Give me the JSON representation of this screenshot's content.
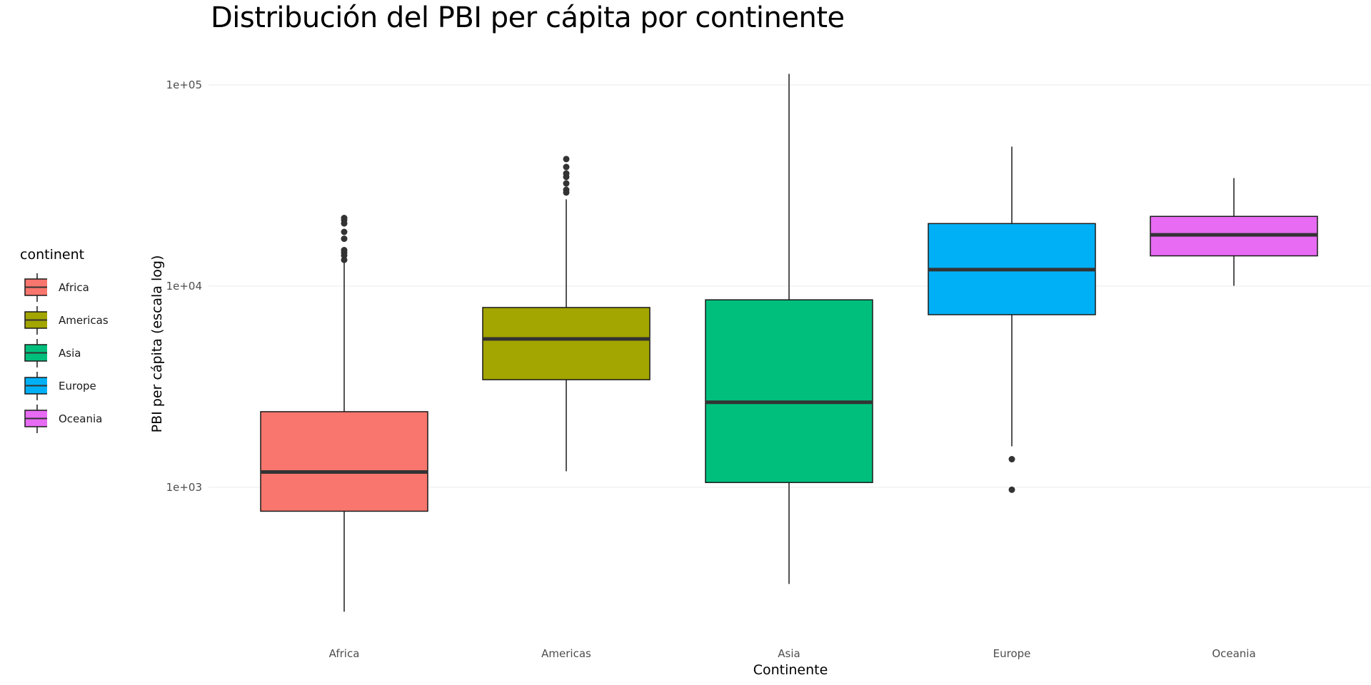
{
  "chart_data": {
    "type": "box",
    "title": "Distribución del PBI per cápita por continente",
    "xlabel": "Continente",
    "ylabel": "PBI per cápita (escala log)",
    "y_scale": "log10",
    "ylim": [
      200,
      120000
    ],
    "y_ticks": [
      1000,
      10000,
      100000
    ],
    "y_tick_labels": [
      "1e+03",
      "1e+04",
      "1e+05"
    ],
    "grid": true,
    "legend_title": "continent",
    "legend_position": "left",
    "categories": [
      "Africa",
      "Americas",
      "Asia",
      "Europe",
      "Oceania"
    ],
    "colors": [
      "#F8766D",
      "#A3A500",
      "#00BF7D",
      "#00B0F6",
      "#E76BF3"
    ],
    "boxes": [
      {
        "name": "Africa",
        "whisker_low": 241,
        "q1": 761,
        "median": 1192,
        "q3": 2377,
        "whisker_high": 13206,
        "outliers": [
          13500,
          14200,
          14700,
          15100,
          17200,
          18600,
          20500,
          21300,
          21800
        ]
      },
      {
        "name": "Americas",
        "whisker_low": 1202,
        "q1": 3428,
        "median": 5466,
        "q3": 7830,
        "whisker_high": 27000,
        "outliers": [
          29200,
          30100,
          32400,
          34900,
          36300,
          39100,
          42800
        ]
      },
      {
        "name": "Asia",
        "whisker_low": 331,
        "q1": 1057,
        "median": 2647,
        "q3": 8549,
        "whisker_high": 113523,
        "outliers": []
      },
      {
        "name": "Europe",
        "whisker_low": 1600,
        "q1": 7213,
        "median": 12082,
        "q3": 20461,
        "whisker_high": 49357,
        "outliers": [
          1380,
          973
        ]
      },
      {
        "name": "Oceania",
        "whisker_low": 10040,
        "q1": 14142,
        "median": 17983,
        "q3": 22214,
        "whisker_high": 34435,
        "outliers": []
      }
    ]
  }
}
